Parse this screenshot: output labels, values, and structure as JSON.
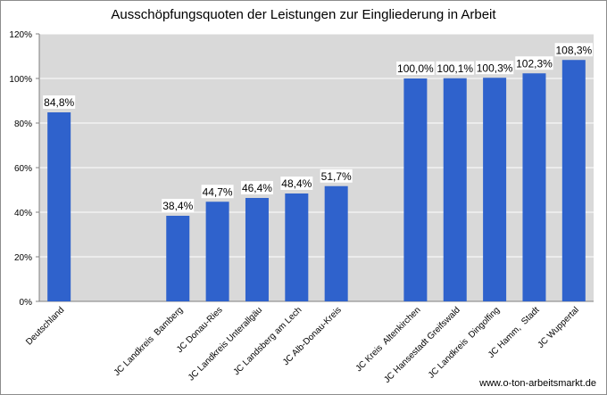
{
  "chart_data": {
    "type": "bar",
    "title": "Ausschöpfungsquoten der Leistungen zur Eingliederung in Arbeit",
    "xlabel": "",
    "ylabel": "",
    "ylim": [
      0,
      120
    ],
    "yticks": [
      "0%",
      "20%",
      "40%",
      "60%",
      "80%",
      "100%",
      "120%"
    ],
    "grid": true,
    "bar_color": "#2f62cc",
    "plot_background": "#d9d9d9",
    "categories": [
      "Deutschland",
      "",
      "",
      "JC Landkreis  Bamberg",
      "JC Donau-Ries",
      "JC Landkreis Unterallgäu",
      "JC Landsberg am Lech",
      "JC Alb-Donau-Kreis",
      "",
      "JC Kreis  Altenkirchen",
      "JC Hansestadt Greifswald",
      "JC Landkreis  Dingolfing",
      "JC Hamm,  Stadt",
      "JC Wuppertal"
    ],
    "values": [
      84.8,
      null,
      null,
      38.4,
      44.7,
      46.4,
      48.4,
      51.7,
      null,
      100.0,
      100.1,
      100.3,
      102.3,
      108.3
    ],
    "value_labels": [
      "84,8%",
      "",
      "",
      "38,4%",
      "44,7%",
      "46,4%",
      "48,4%",
      "51,7%",
      "",
      "100,0%",
      "100,1%",
      "100,3%",
      "102,3%",
      "108,3%"
    ]
  },
  "footer": "www.o-ton-arbeitsmarkt.de"
}
